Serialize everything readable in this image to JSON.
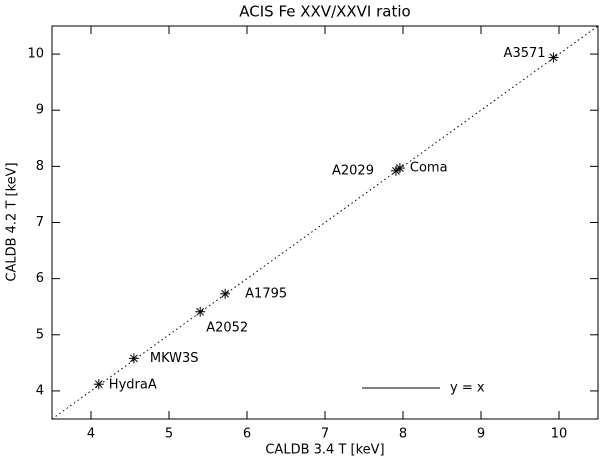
{
  "chart_data": {
    "type": "scatter",
    "title": "ACIS Fe XXV/XXVI ratio",
    "x_label": "CALDB 3.4 T [keV]",
    "y_label": "CALDB 4.2 T [keV]",
    "x": [
      4.1,
      4.55,
      5.4,
      5.72,
      7.91,
      7.96,
      9.93
    ],
    "values": [
      4.12,
      4.58,
      5.41,
      5.73,
      7.92,
      7.97,
      9.94
    ],
    "point_labels": [
      "HydraA",
      "MKW3S",
      "A2052",
      "A1795",
      "A2029",
      "Coma",
      "A3571"
    ],
    "color": "#000000",
    "reference_line": {
      "label": "y = x",
      "slope": 1
    },
    "xlim": [
      3.5,
      10.5
    ],
    "ylim": [
      3.5,
      10.5
    ],
    "xticks": [
      4,
      5,
      6,
      7,
      8,
      9,
      10
    ],
    "yticks": [
      4,
      5,
      6,
      7,
      8,
      9,
      10
    ]
  }
}
